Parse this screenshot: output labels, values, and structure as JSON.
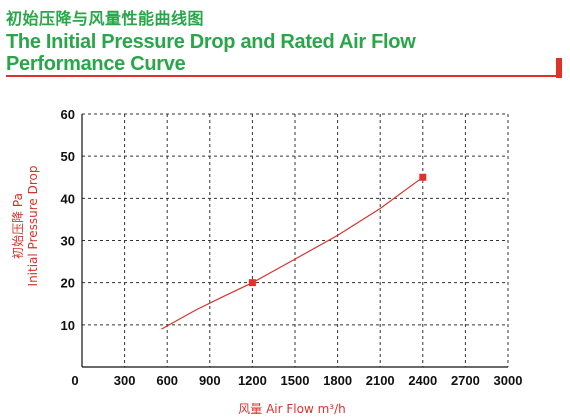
{
  "header": {
    "title_cn": "初始压降与风量性能曲线图",
    "title_en_line1": "The Initial Pressure Drop and Rated Air Flow",
    "title_en_line2": "Performance Curve"
  },
  "colors": {
    "title": "#2aa64a",
    "accent": "#e0302a",
    "curve": "#d6342b",
    "grid": "#333333"
  },
  "chart_data": {
    "type": "line",
    "title": "The Initial Pressure Drop and Rated Air Flow Performance Curve",
    "xlabel": "风量 Air Flow m³/h",
    "ylabel_line1": "初始压降 Pa",
    "ylabel_line2": "Initial Pressure Drop",
    "xlim": [
      0,
      3000
    ],
    "ylim": [
      0,
      60
    ],
    "x_ticks": [
      0,
      300,
      600,
      900,
      1200,
      1500,
      1800,
      2100,
      2400,
      2700,
      3000
    ],
    "y_ticks": [
      10,
      20,
      30,
      40,
      50,
      60
    ],
    "grid": true,
    "series": [
      {
        "x": [
          560,
          800,
          1000,
          1200,
          1500,
          1800,
          2100,
          2400
        ],
        "y": [
          9,
          13.5,
          16.8,
          20,
          25.6,
          31.2,
          37.6,
          45
        ],
        "markers": [
          {
            "x": 1200,
            "y": 20
          },
          {
            "x": 2400,
            "y": 45
          }
        ]
      }
    ]
  }
}
